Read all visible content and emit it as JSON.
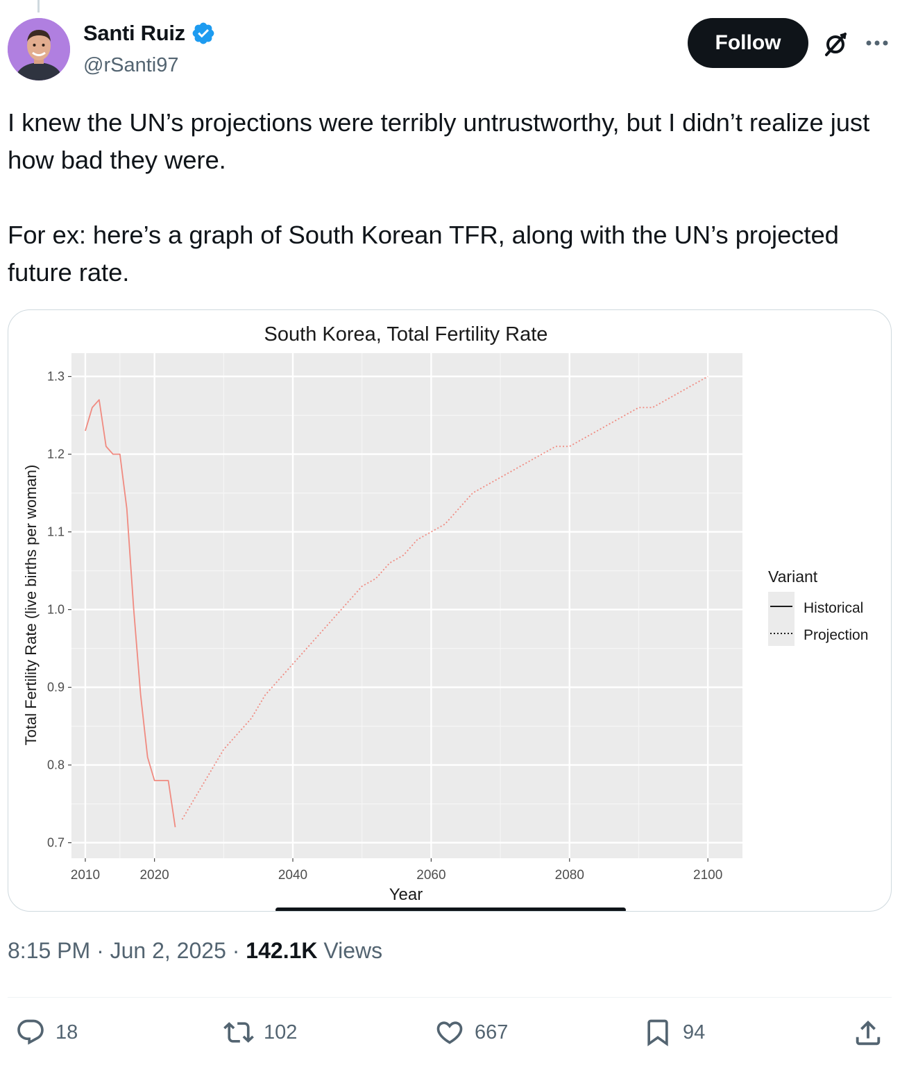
{
  "author": {
    "name": "Santi Ruiz",
    "handle": "@rSanti97",
    "verified": true,
    "avatar_bg": "#b07fe0"
  },
  "header": {
    "follow_label": "Follow",
    "grok_icon": "grok-icon",
    "more_icon": "more-icon"
  },
  "post": {
    "paragraph_1": "I knew the UN’s projections were terribly untrustworthy, but I didn’t realize just how bad they were.",
    "paragraph_2": "For ex: here’s a graph of South Korean TFR, along with the UN’s projected future rate."
  },
  "chart_data": {
    "type": "line",
    "title": "South Korea, Total Fertility Rate",
    "xlabel": "Year",
    "ylabel": "Total Fertility Rate (live births per woman)",
    "xlim": [
      2008,
      2105
    ],
    "ylim": [
      0.68,
      1.33
    ],
    "xticks": [
      2010,
      2020,
      2040,
      2060,
      2080,
      2100
    ],
    "yticks": [
      0.7,
      0.8,
      0.9,
      1.0,
      1.1,
      1.2,
      1.3
    ],
    "grid": true,
    "line_color": "#f08a80",
    "legend": {
      "title": "Variant",
      "position": "right",
      "entries": [
        {
          "label": "Historical",
          "style": "solid"
        },
        {
          "label": "Projection",
          "style": "dotted"
        }
      ]
    },
    "series": [
      {
        "name": "Historical",
        "style": "solid",
        "x": [
          2010,
          2011,
          2012,
          2013,
          2014,
          2015,
          2016,
          2017,
          2018,
          2019,
          2020,
          2021,
          2022,
          2023
        ],
        "y": [
          1.23,
          1.26,
          1.27,
          1.21,
          1.2,
          1.2,
          1.13,
          1.0,
          0.89,
          0.81,
          0.78,
          0.78,
          0.78,
          0.72
        ]
      },
      {
        "name": "Projection",
        "style": "dotted",
        "x": [
          2024,
          2026,
          2028,
          2030,
          2032,
          2034,
          2036,
          2038,
          2040,
          2042,
          2044,
          2046,
          2048,
          2050,
          2052,
          2054,
          2056,
          2058,
          2060,
          2062,
          2064,
          2066,
          2068,
          2070,
          2072,
          2074,
          2076,
          2078,
          2080,
          2082,
          2084,
          2086,
          2088,
          2090,
          2092,
          2094,
          2096,
          2098,
          2100
        ],
        "y": [
          0.73,
          0.76,
          0.79,
          0.82,
          0.84,
          0.86,
          0.89,
          0.91,
          0.93,
          0.95,
          0.97,
          0.99,
          1.01,
          1.03,
          1.04,
          1.06,
          1.07,
          1.09,
          1.1,
          1.11,
          1.13,
          1.15,
          1.16,
          1.17,
          1.18,
          1.19,
          1.2,
          1.21,
          1.21,
          1.22,
          1.23,
          1.24,
          1.25,
          1.26,
          1.26,
          1.27,
          1.28,
          1.29,
          1.3
        ]
      }
    ]
  },
  "meta": {
    "time": "8:15 PM · Jun 2, 2025 · ",
    "views_count": "142.1K",
    "views_label": " Views"
  },
  "actions": {
    "replies": "18",
    "reposts": "102",
    "likes": "667",
    "bookmarks": "94"
  }
}
